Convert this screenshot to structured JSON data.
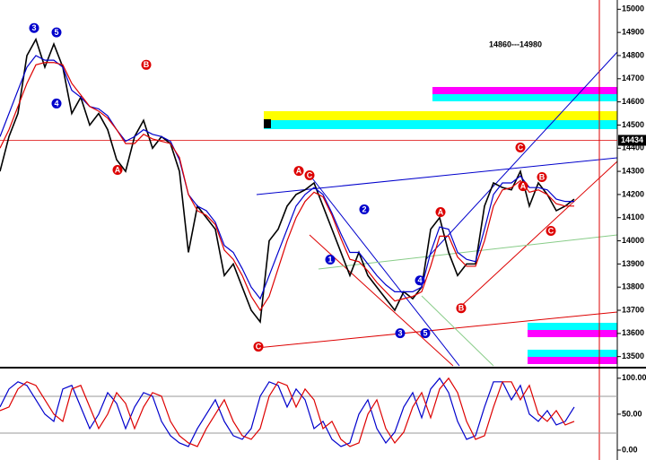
{
  "chart_data": [
    {
      "type": "line",
      "ylim": [
        13460,
        15040
      ],
      "yticks": [
        13500,
        13600,
        13700,
        13800,
        13900,
        14000,
        14100,
        14200,
        14300,
        14400,
        14500,
        14600,
        14700,
        14800,
        14900,
        15000
      ],
      "highlight_level": 14434,
      "annotation": "14860---14980",
      "series": [
        {
          "color": "#000000",
          "values": [
            14300,
            14450,
            14550,
            14800,
            14870,
            14750,
            14850,
            14750,
            14550,
            14620,
            14500,
            14550,
            14480,
            14350,
            14300,
            14450,
            14520,
            14400,
            14450,
            14420,
            14300,
            13950,
            14150,
            14100,
            14050,
            13850,
            13900,
            13800,
            13700,
            13650,
            14000,
            14050,
            14150,
            14200,
            14220,
            14250,
            14150,
            14050,
            13950,
            13850,
            13950,
            13850,
            13800,
            13750,
            13700,
            13780,
            13750,
            13800,
            14050,
            14100,
            13950,
            13850,
            13900,
            13900,
            14150,
            14250,
            14230,
            14220,
            14300,
            14150,
            14250,
            14200,
            14130,
            14150,
            14180
          ]
        },
        {
          "color": "#0000cc",
          "values": [
            14450,
            14550,
            14650,
            14750,
            14800,
            14780,
            14780,
            14750,
            14650,
            14620,
            14580,
            14570,
            14540,
            14480,
            14430,
            14450,
            14480,
            14460,
            14450,
            14430,
            14350,
            14200,
            14150,
            14130,
            14080,
            13980,
            13950,
            13880,
            13800,
            13750,
            13850,
            13950,
            14050,
            14150,
            14200,
            14230,
            14200,
            14120,
            14030,
            13950,
            13950,
            13900,
            13850,
            13810,
            13780,
            13780,
            13780,
            13800,
            13950,
            14060,
            14050,
            13950,
            13920,
            13910,
            14050,
            14200,
            14250,
            14250,
            14280,
            14230,
            14230,
            14220,
            14180,
            14170,
            14170
          ]
        },
        {
          "color": "#dd0000",
          "values": [
            14400,
            14480,
            14580,
            14680,
            14760,
            14770,
            14770,
            14760,
            14680,
            14630,
            14580,
            14560,
            14530,
            14480,
            14420,
            14420,
            14460,
            14440,
            14430,
            14420,
            14360,
            14200,
            14130,
            14110,
            14070,
            13960,
            13920,
            13850,
            13760,
            13700,
            13760,
            13880,
            14000,
            14100,
            14170,
            14210,
            14190,
            14110,
            14010,
            13920,
            13910,
            13870,
            13820,
            13780,
            13740,
            13750,
            13760,
            13780,
            13890,
            14020,
            14020,
            13930,
            13890,
            13890,
            14000,
            14150,
            14220,
            14230,
            14260,
            14210,
            14220,
            14200,
            14160,
            14150,
            14150
          ]
        }
      ],
      "wave_labels": [
        {
          "text": "3",
          "x": 3.8,
          "y": 14919,
          "color": "#0000cc"
        },
        {
          "text": "5",
          "x": 6.3,
          "y": 14900,
          "color": "#0000cc"
        },
        {
          "text": "4",
          "x": 6.3,
          "y": 14593,
          "color": "#0000cc"
        },
        {
          "text": "B",
          "x": 16.3,
          "y": 14760,
          "color": "#dd0000"
        },
        {
          "text": "A",
          "x": 13.1,
          "y": 14306,
          "color": "#dd0000"
        },
        {
          "text": "C",
          "x": 28.8,
          "y": 13543,
          "color": "#dd0000"
        },
        {
          "text": "A",
          "x": 33.3,
          "y": 14302,
          "color": "#dd0000"
        },
        {
          "text": "C",
          "x": 34.5,
          "y": 14283,
          "color": "#dd0000"
        },
        {
          "text": "1",
          "x": 36.8,
          "y": 13919,
          "color": "#0000cc"
        },
        {
          "text": "2",
          "x": 40.6,
          "y": 14136,
          "color": "#0000cc"
        },
        {
          "text": "3",
          "x": 44.6,
          "y": 13601,
          "color": "#0000cc"
        },
        {
          "text": "4",
          "x": 46.8,
          "y": 13829,
          "color": "#0000cc"
        },
        {
          "text": "5",
          "x": 47.4,
          "y": 13601,
          "color": "#0000cc"
        },
        {
          "text": "A",
          "x": 49.1,
          "y": 14124,
          "color": "#dd0000"
        },
        {
          "text": "B",
          "x": 51.4,
          "y": 13709,
          "color": "#dd0000"
        },
        {
          "text": "C",
          "x": 58.0,
          "y": 14403,
          "color": "#dd0000"
        },
        {
          "text": "A",
          "x": 58.3,
          "y": 14236,
          "color": "#dd0000"
        },
        {
          "text": "B",
          "x": 60.4,
          "y": 14275,
          "color": "#dd0000"
        },
        {
          "text": "C",
          "x": 61.4,
          "y": 14043,
          "color": "#dd0000"
        }
      ]
    },
    {
      "type": "line",
      "ylim": [
        -10,
        111
      ],
      "yticks": [
        {
          "value": 0,
          "label": "0.00"
        },
        {
          "value": 50,
          "label": "50.00"
        },
        {
          "value": 100,
          "label": "100.00"
        }
      ],
      "series": [
        {
          "color": "#0000cc",
          "values": [
            60,
            85,
            95,
            90,
            70,
            50,
            40,
            85,
            90,
            60,
            30,
            50,
            80,
            65,
            30,
            60,
            80,
            75,
            40,
            20,
            10,
            5,
            30,
            50,
            70,
            40,
            20,
            15,
            30,
            75,
            95,
            90,
            60,
            85,
            70,
            30,
            40,
            15,
            5,
            10,
            50,
            70,
            30,
            10,
            25,
            60,
            80,
            45,
            85,
            100,
            80,
            40,
            15,
            20,
            60,
            95,
            95,
            70,
            90,
            50,
            40,
            55,
            35,
            40,
            60
          ]
        },
        {
          "color": "#dd0000",
          "values": [
            55,
            60,
            85,
            95,
            90,
            70,
            50,
            40,
            85,
            90,
            60,
            30,
            50,
            80,
            65,
            30,
            60,
            80,
            75,
            40,
            20,
            10,
            5,
            30,
            50,
            70,
            40,
            20,
            15,
            30,
            75,
            95,
            90,
            60,
            85,
            70,
            30,
            40,
            15,
            5,
            10,
            50,
            70,
            30,
            10,
            25,
            60,
            80,
            45,
            85,
            100,
            80,
            40,
            15,
            20,
            60,
            95,
            95,
            70,
            90,
            50,
            40,
            55,
            35,
            40
          ]
        }
      ]
    }
  ]
}
